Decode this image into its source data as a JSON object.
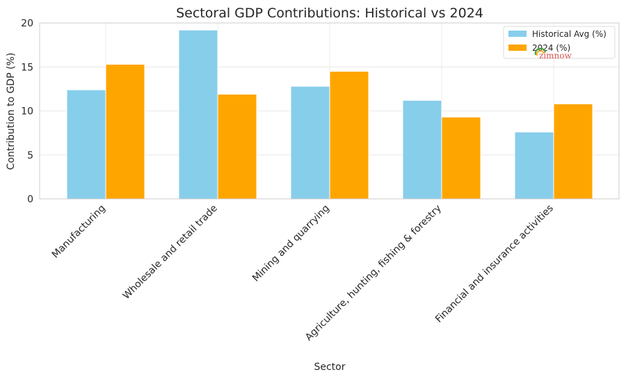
{
  "chart_data": {
    "type": "bar",
    "title": "Sectoral GDP Contributions: Historical vs 2024",
    "xlabel": "Sector",
    "ylabel": "Contribution to GDP (%)",
    "categories": [
      "Manufacturing",
      "Wholesale and retail trade",
      "Mining and quarrying",
      "Agriculture, hunting, fishing & forestry",
      "Financial and insurance activities"
    ],
    "series": [
      {
        "name": "Historical Avg (%)",
        "color": "#87CEEB",
        "values": [
          12.4,
          19.2,
          12.8,
          11.2,
          7.6
        ]
      },
      {
        "name": "2024 (%)",
        "color": "#FFA500",
        "values": [
          15.3,
          11.9,
          14.5,
          9.3,
          10.8
        ]
      }
    ],
    "ylim": [
      0,
      20
    ],
    "yticks": [
      0,
      5,
      10,
      15,
      20
    ],
    "grid": true,
    "legend_position": "top-right"
  },
  "watermark": {
    "text": "zimnow"
  }
}
